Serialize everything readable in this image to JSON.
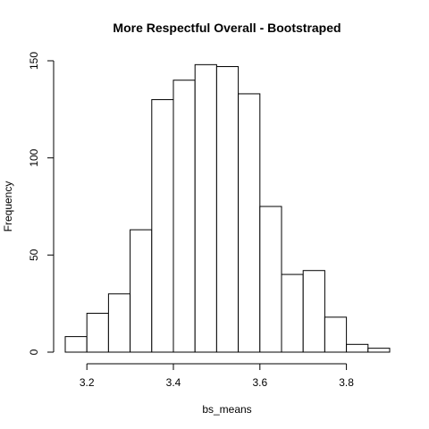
{
  "chart_data": {
    "type": "bar",
    "title": "More Respectful Overall - Bootstraped",
    "xlabel": "bs_means",
    "ylabel": "Frequency",
    "bin_edges": [
      3.15,
      3.2,
      3.25,
      3.3,
      3.35,
      3.4,
      3.45,
      3.5,
      3.55,
      3.6,
      3.65,
      3.7,
      3.75,
      3.8,
      3.85,
      3.9
    ],
    "values": [
      8,
      20,
      30,
      63,
      130,
      140,
      148,
      147,
      133,
      75,
      40,
      42,
      18,
      4,
      2
    ],
    "xlim": [
      3.15,
      3.9
    ],
    "ylim": [
      0,
      150
    ],
    "x_ticks": [
      "3.2",
      "3.4",
      "3.6",
      "3.8"
    ],
    "y_ticks": [
      "0",
      "50",
      "100",
      "150"
    ],
    "grid": false,
    "legend": "none",
    "bar_color": "#ffffff",
    "edge_color": "#000000"
  }
}
